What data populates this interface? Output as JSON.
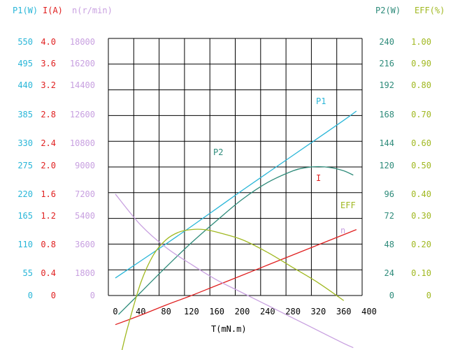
{
  "chart_data": {
    "type": "line",
    "xlabel": "T(mN.m)",
    "x_ticks": [
      "0",
      "40",
      "80",
      "120",
      "160",
      "200",
      "240",
      "280",
      "320",
      "360",
      "400"
    ],
    "xlim": [
      0,
      400
    ],
    "grid": true,
    "axes": {
      "p1": {
        "label": "P1(W)",
        "color": "#29b6d8",
        "min": 0,
        "max": 550,
        "ticks": [
          "0",
          "55",
          "110",
          "165",
          "220",
          "275",
          "330",
          "385",
          "440",
          "495",
          "550"
        ]
      },
      "i": {
        "label": "I(A)",
        "color": "#e02020",
        "min": 0,
        "max": 4.0,
        "ticks": [
          "0",
          "0.4",
          "0.8",
          "1.2",
          "1.6",
          "2.0",
          "2.4",
          "2.8",
          "3.2",
          "3.6",
          "4.0"
        ]
      },
      "n": {
        "label": "n(r/min)",
        "color": "#c8a0e0",
        "min": 0,
        "max": 18000,
        "ticks": [
          "0",
          "1800",
          "3600",
          "5400",
          "7200",
          "9000",
          "10800",
          "12600",
          "14400",
          "16200",
          "18000"
        ]
      },
      "p2": {
        "label": "P2(W)",
        "color": "#2e8b7a",
        "min": 0,
        "max": 240,
        "ticks": [
          "0",
          "24",
          "48",
          "72",
          "96",
          "120",
          "144",
          "168",
          "192",
          "216",
          "240"
        ]
      },
      "eff": {
        "label": "EFF(%)",
        "color": "#a0b820",
        "min": 0,
        "max": 1.0,
        "ticks": [
          "0",
          "0.10",
          "0.20",
          "0.30",
          "0.40",
          "0.50",
          "0.60",
          "0.70",
          "0.80",
          "0.90",
          "1.00"
        ]
      }
    },
    "series": [
      {
        "name": "P1",
        "axis": "p1",
        "color": "#29b6d8",
        "x": [
          0,
          40,
          80,
          120,
          160,
          200,
          240,
          280,
          320,
          360,
          380
        ],
        "y": [
          38,
          75,
          112,
          150,
          189,
          228,
          266,
          304,
          342,
          380,
          400
        ]
      },
      {
        "name": "P2",
        "axis": "p2",
        "color": "#2e8b7a",
        "x": [
          5,
          40,
          80,
          120,
          160,
          200,
          240,
          280,
          300,
          320,
          340,
          360,
          375
        ],
        "y": [
          -18,
          3,
          27,
          50,
          71,
          91,
          107,
          118,
          121,
          122,
          121,
          118,
          114
        ]
      },
      {
        "name": "I",
        "axis": "i",
        "color": "#e02020",
        "x": [
          0,
          40,
          80,
          120,
          160,
          200,
          240,
          280,
          320,
          360,
          380
        ],
        "y": [
          -0.46,
          -0.31,
          -0.15,
          0.0,
          0.16,
          0.32,
          0.48,
          0.64,
          0.8,
          0.96,
          1.04
        ]
      },
      {
        "name": "n",
        "axis": "n",
        "color": "#c8a0e0",
        "x": [
          0,
          40,
          80,
          120,
          160,
          200,
          240,
          280,
          320,
          360,
          375
        ],
        "y": [
          7200,
          5000,
          3400,
          2200,
          1100,
          200,
          -700,
          -1600,
          -2500,
          -3400,
          -3700
        ]
      },
      {
        "name": "EFF",
        "axis": "eff",
        "color": "#a0b820",
        "x": [
          10,
          20,
          40,
          60,
          80,
          100,
          120,
          140,
          160,
          200,
          240,
          280,
          320,
          360
        ],
        "y": [
          -0.22,
          -0.12,
          0.05,
          0.16,
          0.22,
          0.25,
          0.26,
          0.26,
          0.25,
          0.22,
          0.17,
          0.11,
          0.05,
          -0.02
        ]
      }
    ]
  }
}
